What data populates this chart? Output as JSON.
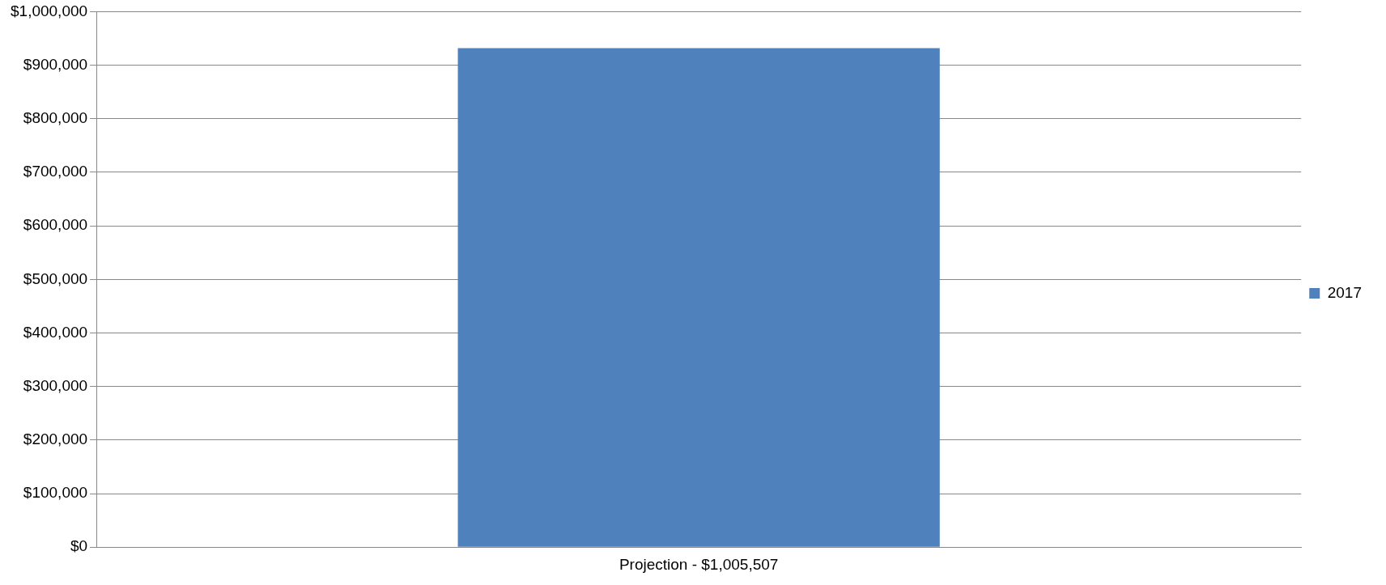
{
  "chart_data": {
    "type": "bar",
    "categories": [
      "Projection - $1,005,507"
    ],
    "series": [
      {
        "name": "2017",
        "color": "#4f81bd",
        "values": [
          932000
        ]
      }
    ],
    "ylim": [
      0,
      1000000
    ],
    "yticks": [
      {
        "value": 0,
        "label": "$0"
      },
      {
        "value": 100000,
        "label": "$100,000"
      },
      {
        "value": 200000,
        "label": "$200,000"
      },
      {
        "value": 300000,
        "label": "$300,000"
      },
      {
        "value": 400000,
        "label": "$400,000"
      },
      {
        "value": 500000,
        "label": "$500,000"
      },
      {
        "value": 600000,
        "label": "$600,000"
      },
      {
        "value": 700000,
        "label": "$700,000"
      },
      {
        "value": 800000,
        "label": "$800,000"
      },
      {
        "value": 900000,
        "label": "$900,000"
      },
      {
        "value": 1000000,
        "label": "$1,000,000"
      }
    ],
    "grid": "y",
    "legend": "right"
  }
}
